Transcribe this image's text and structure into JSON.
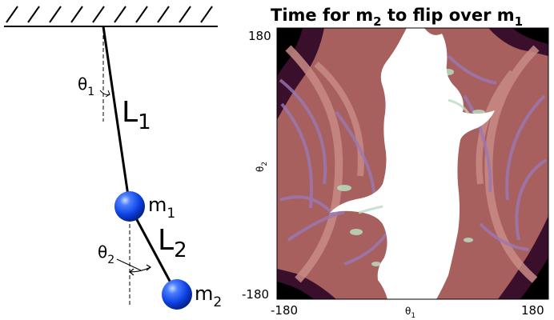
{
  "pendulum": {
    "theta1": {
      "sym": "θ",
      "sub": "1"
    },
    "theta2": {
      "sym": "θ",
      "sub": "2"
    },
    "L1": {
      "sym": "L",
      "sub": "1"
    },
    "L2": {
      "sym": "L",
      "sub": "2"
    },
    "m1": {
      "sym": "m",
      "sub": "1"
    },
    "m2": {
      "sym": "m",
      "sub": "2"
    }
  },
  "heatmap": {
    "title_a": "Time for m",
    "title_sub_a": "2",
    "title_b": " to flip over m",
    "title_sub_b": "1",
    "xlabel": {
      "sym": "θ",
      "sub": "1"
    },
    "ylabel": {
      "sym": "θ",
      "sub": "2"
    },
    "x_tick_min": "-180",
    "x_tick_max": "180",
    "y_tick_min": "-180",
    "y_tick_max": "180",
    "colors": {
      "base": "#a7605e",
      "light": "#c98b86",
      "purple": "#9a78b4",
      "green": "#b9dcc0",
      "dark": "#2a0a20",
      "black": "#000000"
    }
  }
}
